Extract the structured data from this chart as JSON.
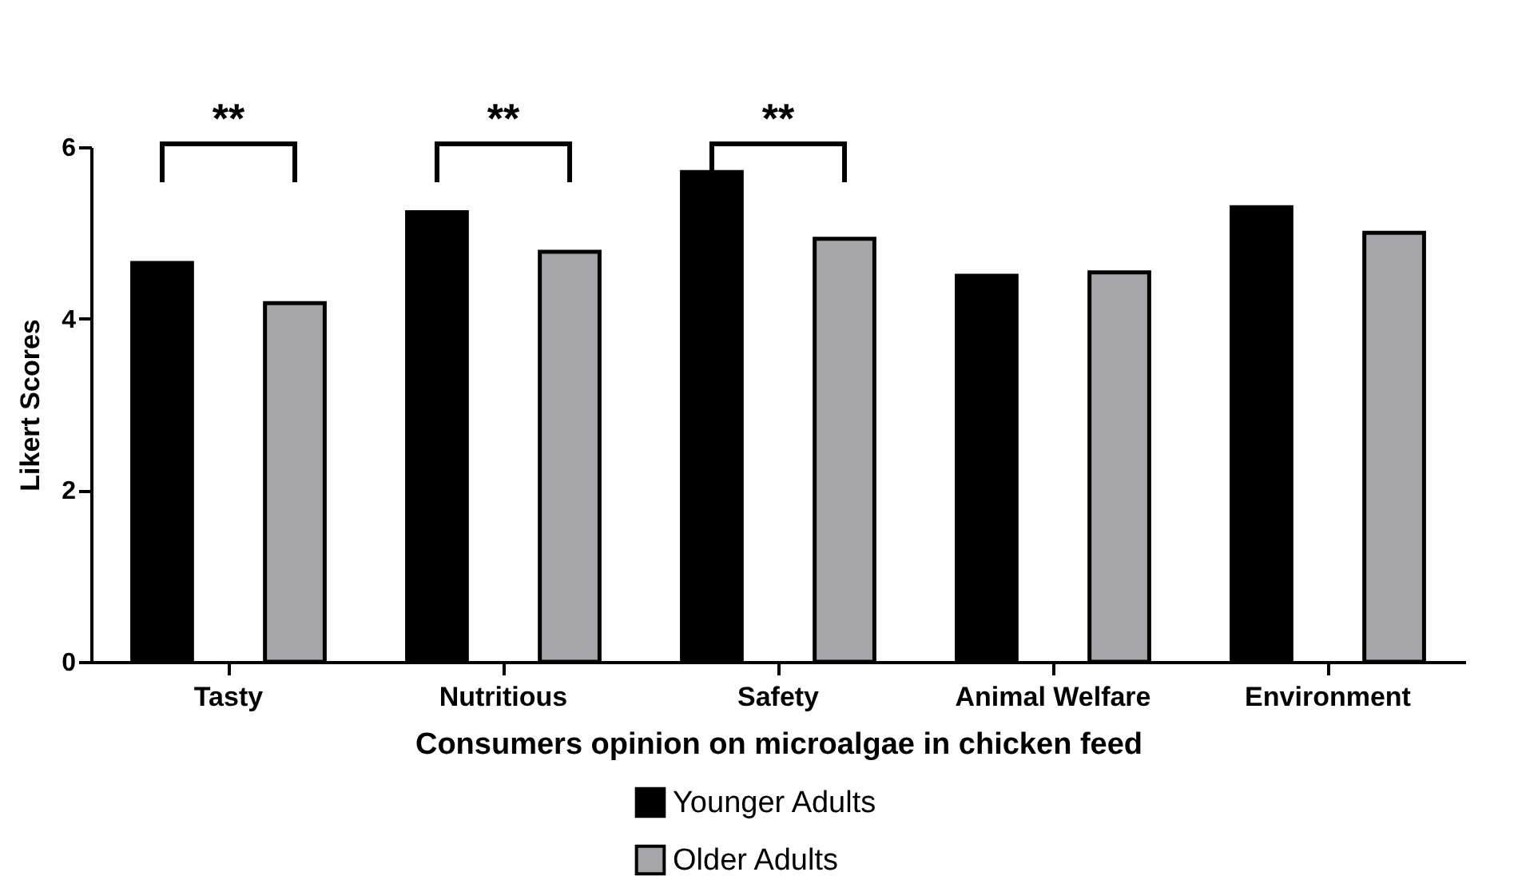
{
  "chart_data": {
    "type": "bar",
    "xlabel": "Consumers opinion on microalgae in chicken feed",
    "ylabel": "Likert Scores",
    "categories": [
      "Tasty",
      "Nutritious",
      "Safety",
      "Animal Welfare",
      "Environment"
    ],
    "series": [
      {
        "name": "Younger Adults",
        "color": "#000000",
        "values": [
          4.65,
          5.24,
          5.71,
          4.5,
          5.3
        ]
      },
      {
        "name": "Older Adults",
        "color": "#a6a6aa",
        "values": [
          4.18,
          4.78,
          4.93,
          4.54,
          5.0
        ]
      }
    ],
    "ylim": [
      0,
      6
    ],
    "yticks": [
      0,
      2,
      4,
      6
    ],
    "grid": false,
    "legend": "bottom",
    "annotations": [
      "**",
      "**",
      "**"
    ]
  }
}
